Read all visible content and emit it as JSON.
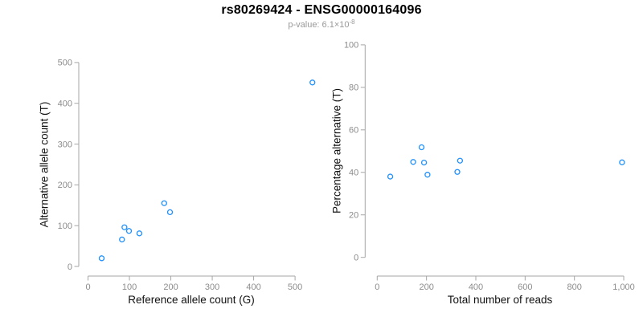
{
  "header": {
    "title": "rs80269424 - ENSG00000164096",
    "subtitle_main": "p-value: 6.1×10",
    "subtitle_exponent": "-8"
  },
  "colors": {
    "point_blue": "#1E90FF",
    "line_blue": "#1E90FF",
    "identity_black": "#000000",
    "axis_line_grey": "#A6A6A6",
    "tick_label_grey": "#8C8C8C",
    "axis_title_black": "#111111",
    "subtitle_grey": "#999999"
  },
  "chart_data": [
    {
      "id": "allele-counts-scatter",
      "type": "scatter",
      "xlabel": "Reference allele count (G)",
      "ylabel": "Alternative allele count (T)",
      "x_ticks": [
        0,
        100,
        200,
        300,
        400,
        500
      ],
      "x_tick_labels": [
        "0",
        "100",
        "200",
        "300",
        "400",
        "500"
      ],
      "y_ticks": [
        0,
        100,
        200,
        300,
        400,
        500
      ],
      "y_tick_labels": [
        "0",
        "100",
        "200",
        "300",
        "400",
        "500"
      ],
      "xlim": [
        -22,
        565
      ],
      "ylim": [
        -22,
        565
      ],
      "grid": false,
      "legend": "none",
      "points": [
        [
          33,
          20
        ],
        [
          82,
          66
        ],
        [
          88,
          96
        ],
        [
          99,
          87
        ],
        [
          124,
          81
        ],
        [
          184,
          155
        ],
        [
          198,
          133
        ],
        [
          542,
          451
        ]
      ],
      "lines": [
        {
          "name": "identity-line",
          "style": "dotted",
          "color": "#000000",
          "x1": 0,
          "y1": 0,
          "x2": 560,
          "y2": 560,
          "width": 2
        },
        {
          "name": "regression-line",
          "style": "solid",
          "color": "#1E90FF",
          "x1": -20,
          "y1": -16,
          "x2": 545,
          "y2": 436,
          "width": 2.8
        }
      ]
    },
    {
      "id": "percentage-alternative-scatter",
      "type": "scatter",
      "xlabel": "Total number of reads",
      "ylabel": "Percentage alternative (T)",
      "x_ticks": [
        0,
        200,
        400,
        600,
        800,
        1000
      ],
      "x_tick_labels": [
        "0",
        "200",
        "400",
        "600",
        "800",
        "1,000"
      ],
      "y_ticks": [
        0,
        20,
        40,
        60,
        80,
        100
      ],
      "y_tick_labels": [
        "0",
        "20",
        "40",
        "60",
        "80",
        "100"
      ],
      "xlim": [
        -50,
        1030
      ],
      "ylim": [
        -8,
        100
      ],
      "grid": false,
      "legend": "none",
      "points": [
        [
          53,
          38
        ],
        [
          146,
          44.9
        ],
        [
          180,
          51.8
        ],
        [
          190,
          44.6
        ],
        [
          204,
          38.9
        ],
        [
          325,
          40.2
        ],
        [
          336,
          45.5
        ],
        [
          993,
          44.7
        ]
      ],
      "lines": [
        {
          "name": "expected-50-line",
          "style": "dotted",
          "color": "#000000",
          "x1": -8,
          "y1": 50,
          "x2": 978,
          "y2": 50,
          "width": 2
        },
        {
          "name": "mean-line",
          "style": "solid",
          "color": "#1E90FF",
          "x1": -8,
          "y1": 44.5,
          "x2": 993,
          "y2": 44.5,
          "width": 2.3
        }
      ]
    }
  ]
}
